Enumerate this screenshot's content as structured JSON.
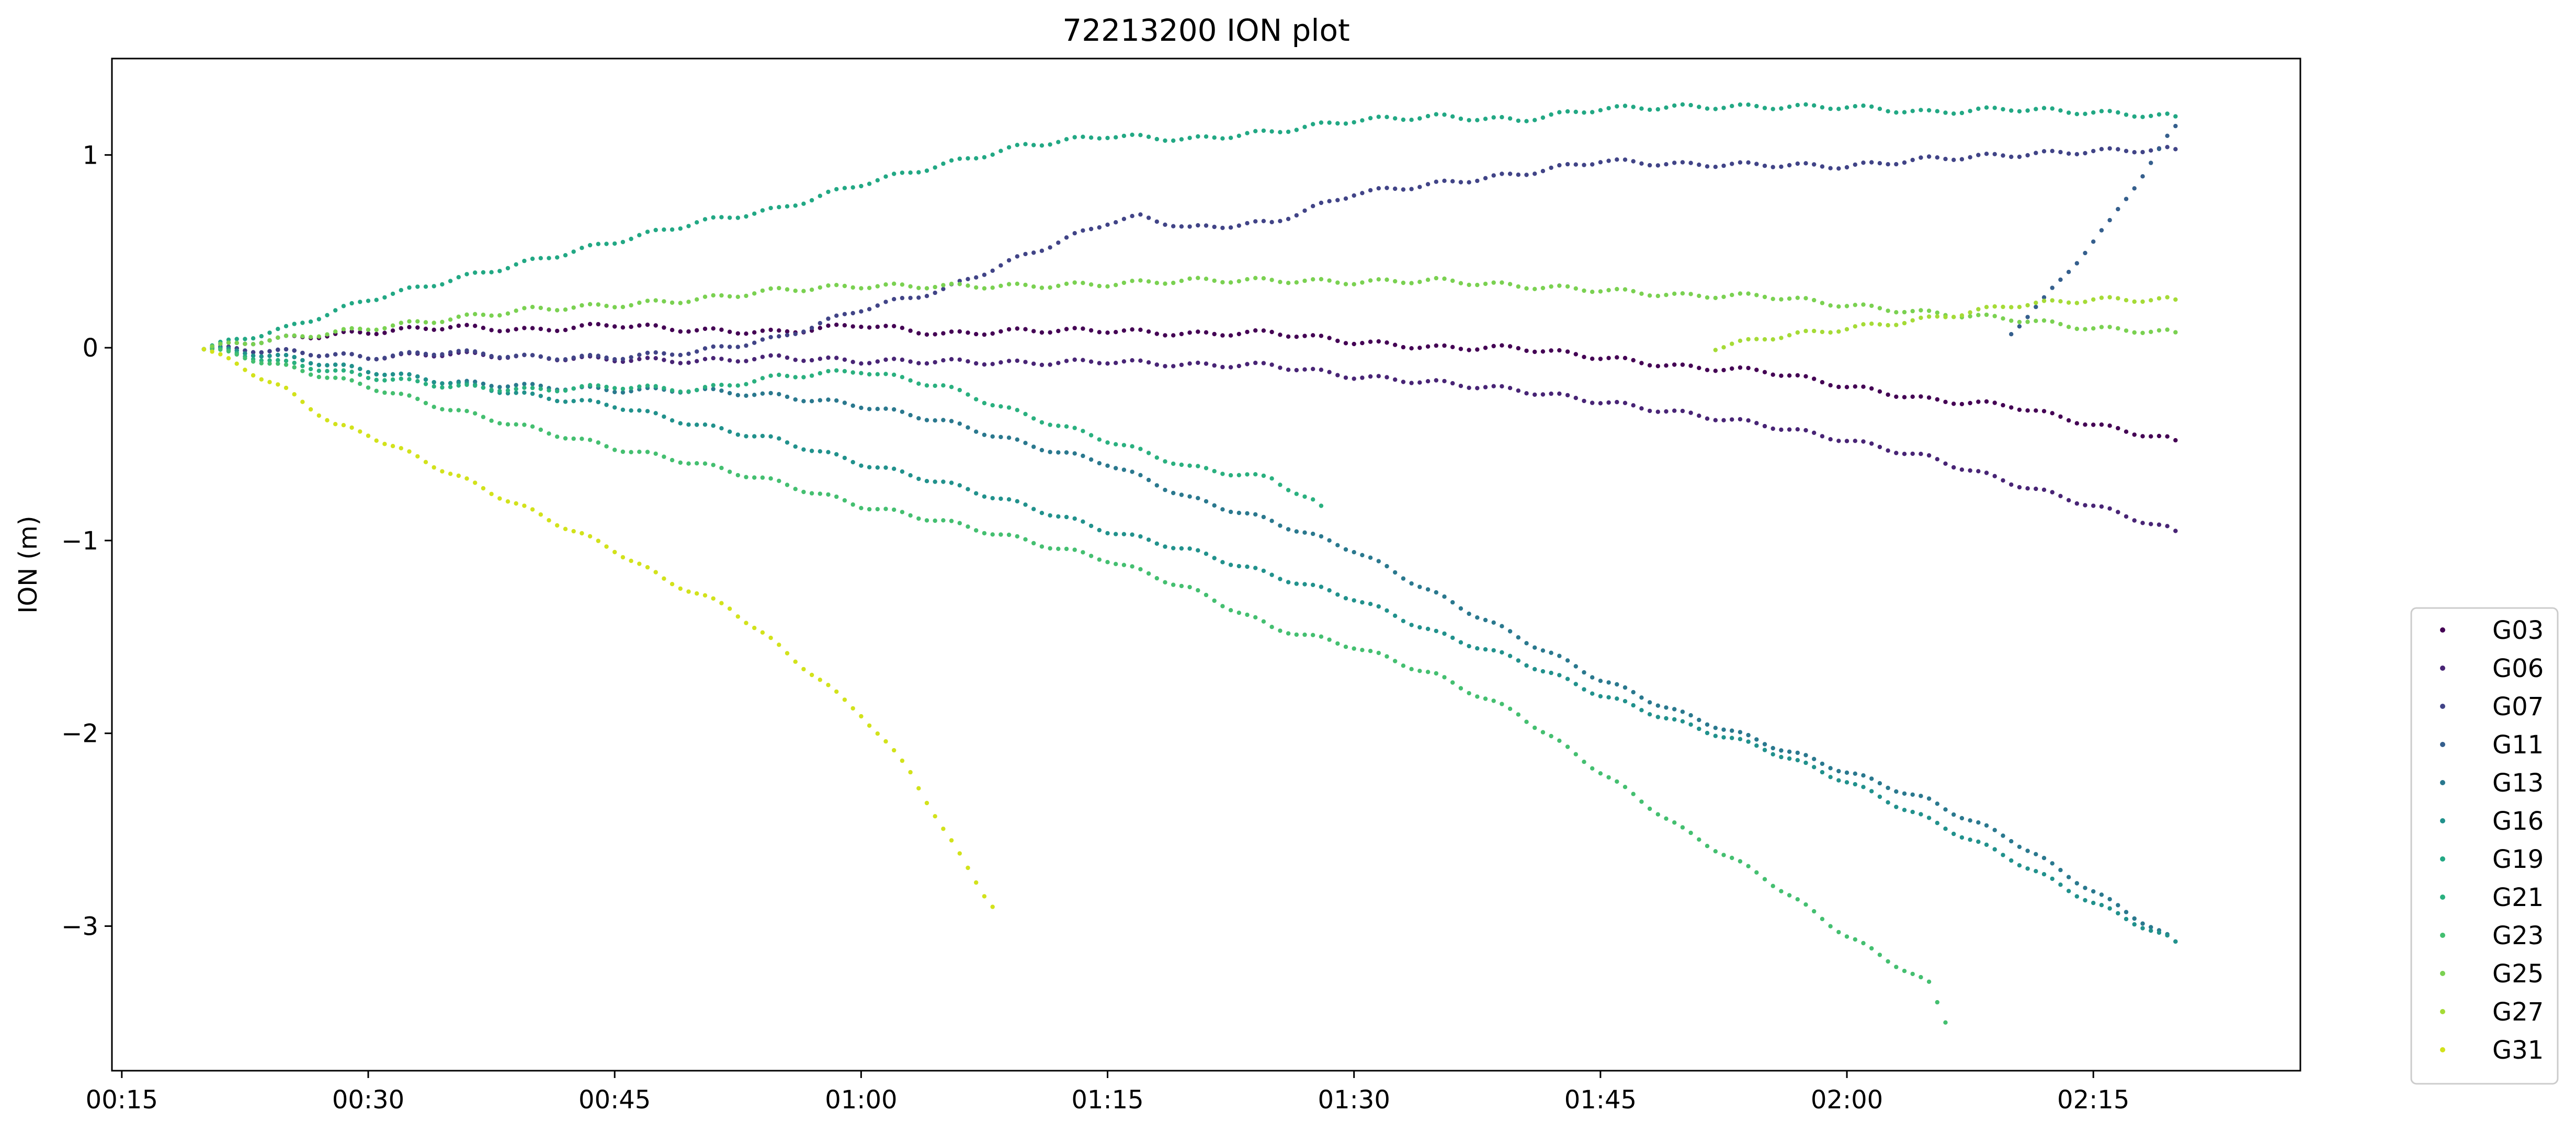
{
  "chart_data": {
    "type": "scatter",
    "title": "72213200 ION plot",
    "xlabel": "",
    "ylabel": "ION (m)",
    "x_unit": "minutes since 00:00",
    "xlim": [
      14.4,
      147.6
    ],
    "ylim": [
      -3.75,
      1.5
    ],
    "xticks": [
      {
        "value": 15,
        "label": "00:15"
      },
      {
        "value": 30,
        "label": "00:30"
      },
      {
        "value": 45,
        "label": "00:45"
      },
      {
        "value": 60,
        "label": "01:00"
      },
      {
        "value": 75,
        "label": "01:15"
      },
      {
        "value": 90,
        "label": "01:30"
      },
      {
        "value": 105,
        "label": "01:45"
      },
      {
        "value": 120,
        "label": "02:00"
      },
      {
        "value": 135,
        "label": "02:15"
      }
    ],
    "yticks": [
      {
        "value": 1,
        "label": "1"
      },
      {
        "value": 0,
        "label": "0"
      },
      {
        "value": -1,
        "label": "−1"
      },
      {
        "value": -2,
        "label": "−2"
      },
      {
        "value": -3,
        "label": "−3"
      }
    ],
    "legend_position": "outside-right-bottom",
    "sample_interval_min": 0.5,
    "series": [
      {
        "name": "G03",
        "color": "#440154",
        "points": [
          [
            20,
            0
          ],
          [
            25,
            0.05
          ],
          [
            30,
            0.08
          ],
          [
            35,
            0.11
          ],
          [
            40,
            0.09
          ],
          [
            45,
            0.12
          ],
          [
            50,
            0.09
          ],
          [
            55,
            0.08
          ],
          [
            60,
            0.12
          ],
          [
            62,
            0.1
          ],
          [
            65,
            0.07
          ],
          [
            70,
            0.09
          ],
          [
            75,
            0.09
          ],
          [
            80,
            0.07
          ],
          [
            85,
            0.08
          ],
          [
            90,
            0.03
          ],
          [
            95,
            0.0
          ],
          [
            100,
            0.0
          ],
          [
            105,
            -0.05
          ],
          [
            110,
            -0.1
          ],
          [
            115,
            -0.12
          ],
          [
            120,
            -0.2
          ],
          [
            125,
            -0.27
          ],
          [
            130,
            -0.3
          ],
          [
            135,
            -0.4
          ],
          [
            140,
            -0.48
          ]
        ]
      },
      {
        "name": "G06",
        "color": "#482475",
        "points": [
          [
            20,
            0
          ],
          [
            25,
            -0.02
          ],
          [
            30,
            -0.05
          ],
          [
            35,
            -0.03
          ],
          [
            40,
            -0.05
          ],
          [
            45,
            -0.06
          ],
          [
            50,
            -0.07
          ],
          [
            55,
            -0.05
          ],
          [
            60,
            -0.07
          ],
          [
            65,
            -0.07
          ],
          [
            70,
            -0.08
          ],
          [
            75,
            -0.07
          ],
          [
            80,
            -0.09
          ],
          [
            85,
            -0.09
          ],
          [
            90,
            -0.15
          ],
          [
            95,
            -0.18
          ],
          [
            100,
            -0.22
          ],
          [
            105,
            -0.28
          ],
          [
            110,
            -0.34
          ],
          [
            115,
            -0.4
          ],
          [
            120,
            -0.48
          ],
          [
            125,
            -0.57
          ],
          [
            130,
            -0.7
          ],
          [
            135,
            -0.82
          ],
          [
            140,
            -0.95
          ]
        ]
      },
      {
        "name": "G07",
        "color": "#414487",
        "points": [
          [
            20,
            0
          ],
          [
            25,
            -0.02
          ],
          [
            30,
            -0.05
          ],
          [
            35,
            -0.02
          ],
          [
            40,
            -0.05
          ],
          [
            45,
            -0.05
          ],
          [
            50,
            -0.02
          ],
          [
            55,
            0.05
          ],
          [
            60,
            0.2
          ],
          [
            65,
            0.3
          ],
          [
            70,
            0.48
          ],
          [
            75,
            0.65
          ],
          [
            77,
            0.68
          ],
          [
            80,
            0.62
          ],
          [
            85,
            0.65
          ],
          [
            90,
            0.8
          ],
          [
            95,
            0.85
          ],
          [
            100,
            0.9
          ],
          [
            105,
            0.97
          ],
          [
            110,
            0.95
          ],
          [
            115,
            0.95
          ],
          [
            120,
            0.94
          ],
          [
            125,
            0.98
          ],
          [
            130,
            1.0
          ],
          [
            135,
            1.02
          ],
          [
            140,
            1.03
          ]
        ]
      },
      {
        "name": "G11",
        "color": "#355f8d",
        "points": [
          [
            130,
            0.08
          ],
          [
            132,
            0.25
          ],
          [
            134,
            0.45
          ],
          [
            136,
            0.65
          ],
          [
            138,
            0.9
          ],
          [
            140,
            1.15
          ]
        ]
      },
      {
        "name": "G13",
        "color": "#2a788e",
        "points": [
          [
            20,
            0
          ],
          [
            25,
            -0.05
          ],
          [
            30,
            -0.12
          ],
          [
            35,
            -0.18
          ],
          [
            40,
            -0.2
          ],
          [
            45,
            -0.22
          ],
          [
            50,
            -0.22
          ],
          [
            55,
            -0.25
          ],
          [
            60,
            -0.3
          ],
          [
            65,
            -0.38
          ],
          [
            70,
            -0.5
          ],
          [
            75,
            -0.6
          ],
          [
            80,
            -0.78
          ],
          [
            85,
            -0.9
          ],
          [
            90,
            -1.05
          ],
          [
            95,
            -1.28
          ],
          [
            100,
            -1.5
          ],
          [
            105,
            -1.72
          ],
          [
            110,
            -1.9
          ],
          [
            115,
            -2.05
          ],
          [
            120,
            -2.2
          ],
          [
            125,
            -2.35
          ],
          [
            130,
            -2.55
          ],
          [
            135,
            -2.82
          ],
          [
            140,
            -3.08
          ]
        ]
      },
      {
        "name": "G16",
        "color": "#21918c",
        "points": [
          [
            20,
            0
          ],
          [
            25,
            -0.05
          ],
          [
            30,
            -0.12
          ],
          [
            35,
            -0.18
          ],
          [
            40,
            -0.25
          ],
          [
            45,
            -0.3
          ],
          [
            50,
            -0.4
          ],
          [
            55,
            -0.48
          ],
          [
            60,
            -0.6
          ],
          [
            65,
            -0.7
          ],
          [
            70,
            -0.82
          ],
          [
            75,
            -0.95
          ],
          [
            80,
            -1.05
          ],
          [
            85,
            -1.18
          ],
          [
            90,
            -1.3
          ],
          [
            95,
            -1.48
          ],
          [
            100,
            -1.62
          ],
          [
            105,
            -1.8
          ],
          [
            110,
            -1.95
          ],
          [
            115,
            -2.08
          ],
          [
            120,
            -2.25
          ],
          [
            125,
            -2.45
          ],
          [
            130,
            -2.65
          ],
          [
            135,
            -2.88
          ],
          [
            140,
            -3.08
          ]
        ]
      },
      {
        "name": "G19",
        "color": "#22a884",
        "points": [
          [
            20,
            0
          ],
          [
            25,
            0.1
          ],
          [
            30,
            0.25
          ],
          [
            35,
            0.35
          ],
          [
            40,
            0.45
          ],
          [
            45,
            0.55
          ],
          [
            50,
            0.65
          ],
          [
            55,
            0.72
          ],
          [
            60,
            0.85
          ],
          [
            65,
            0.95
          ],
          [
            70,
            1.05
          ],
          [
            75,
            1.1
          ],
          [
            80,
            1.08
          ],
          [
            85,
            1.12
          ],
          [
            90,
            1.18
          ],
          [
            95,
            1.2
          ],
          [
            100,
            1.18
          ],
          [
            105,
            1.24
          ],
          [
            110,
            1.25
          ],
          [
            115,
            1.25
          ],
          [
            120,
            1.25
          ],
          [
            125,
            1.22
          ],
          [
            130,
            1.24
          ],
          [
            135,
            1.22
          ],
          [
            140,
            1.2
          ]
        ]
      },
      {
        "name": "G21",
        "color": "#2ab07f",
        "points": [
          [
            20,
            0
          ],
          [
            25,
            -0.08
          ],
          [
            30,
            -0.15
          ],
          [
            35,
            -0.2
          ],
          [
            40,
            -0.22
          ],
          [
            45,
            -0.2
          ],
          [
            50,
            -0.22
          ],
          [
            55,
            -0.15
          ],
          [
            60,
            -0.12
          ],
          [
            65,
            -0.2
          ],
          [
            70,
            -0.35
          ],
          [
            75,
            -0.48
          ],
          [
            80,
            -0.62
          ],
          [
            85,
            -0.68
          ],
          [
            88,
            -0.82
          ]
        ]
      },
      {
        "name": "G23",
        "color": "#44bf70",
        "points": [
          [
            20,
            0
          ],
          [
            25,
            -0.1
          ],
          [
            30,
            -0.2
          ],
          [
            35,
            -0.32
          ],
          [
            40,
            -0.42
          ],
          [
            45,
            -0.52
          ],
          [
            50,
            -0.6
          ],
          [
            55,
            -0.7
          ],
          [
            60,
            -0.82
          ],
          [
            65,
            -0.9
          ],
          [
            70,
            -1.0
          ],
          [
            75,
            -1.1
          ],
          [
            80,
            -1.25
          ],
          [
            85,
            -1.45
          ],
          [
            90,
            -1.55
          ],
          [
            95,
            -1.7
          ],
          [
            100,
            -1.9
          ],
          [
            105,
            -2.2
          ],
          [
            110,
            -2.5
          ],
          [
            115,
            -2.75
          ],
          [
            120,
            -3.05
          ],
          [
            125,
            -3.3
          ],
          [
            126,
            -3.5
          ]
        ]
      },
      {
        "name": "G25",
        "color": "#7ad151",
        "points": [
          [
            20,
            0
          ],
          [
            25,
            0.05
          ],
          [
            30,
            0.1
          ],
          [
            35,
            0.15
          ],
          [
            40,
            0.2
          ],
          [
            45,
            0.22
          ],
          [
            50,
            0.25
          ],
          [
            55,
            0.3
          ],
          [
            60,
            0.32
          ],
          [
            65,
            0.32
          ],
          [
            70,
            0.32
          ],
          [
            75,
            0.33
          ],
          [
            80,
            0.35
          ],
          [
            85,
            0.35
          ],
          [
            90,
            0.34
          ],
          [
            95,
            0.35
          ],
          [
            100,
            0.32
          ],
          [
            105,
            0.3
          ],
          [
            110,
            0.27
          ],
          [
            115,
            0.27
          ],
          [
            120,
            0.22
          ],
          [
            125,
            0.18
          ],
          [
            130,
            0.15
          ],
          [
            135,
            0.1
          ],
          [
            140,
            0.08
          ]
        ]
      },
      {
        "name": "G27",
        "color": "#a5db36",
        "points": [
          [
            112,
            0.0
          ],
          [
            115,
            0.05
          ],
          [
            120,
            0.1
          ],
          [
            125,
            0.15
          ],
          [
            130,
            0.22
          ],
          [
            135,
            0.25
          ],
          [
            140,
            0.25
          ]
        ]
      },
      {
        "name": "G31",
        "color": "#d2e21b",
        "points": [
          [
            20,
            0
          ],
          [
            25,
            -0.22
          ],
          [
            28,
            -0.4
          ],
          [
            30,
            -0.45
          ],
          [
            35,
            -0.65
          ],
          [
            40,
            -0.85
          ],
          [
            45,
            -1.05
          ],
          [
            48,
            -1.2
          ],
          [
            52,
            -1.35
          ],
          [
            55,
            -1.55
          ],
          [
            60,
            -1.9
          ],
          [
            63,
            -2.2
          ],
          [
            65,
            -2.5
          ],
          [
            68,
            -2.9
          ]
        ]
      }
    ]
  }
}
